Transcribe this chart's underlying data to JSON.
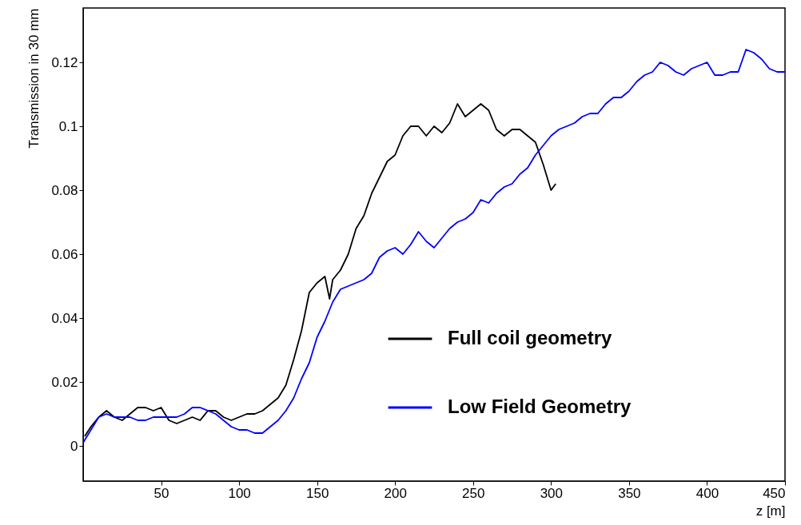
{
  "chart_data": {
    "type": "line",
    "xlabel": "z [m]",
    "ylabel": "Transmission in 30 mm",
    "xlim": [
      0,
      450
    ],
    "xticks": [
      50,
      100,
      150,
      200,
      250,
      300,
      350,
      400,
      450
    ],
    "ylim": [
      -0.011,
      0.137
    ],
    "yticks": [
      0,
      0.02,
      0.04,
      0.06,
      0.08,
      0.1,
      0.12
    ],
    "grid": false,
    "legend": "bottom right",
    "marker": "none",
    "line_style": "solid",
    "series": [
      {
        "name": "Full coil geometry",
        "color": "#000000",
        "x": [
          1,
          5,
          10,
          15,
          20,
          25,
          30,
          35,
          40,
          45,
          50,
          55,
          60,
          65,
          70,
          75,
          80,
          85,
          90,
          95,
          100,
          105,
          110,
          115,
          120,
          125,
          130,
          135,
          140,
          145,
          150,
          155,
          158,
          160,
          165,
          170,
          175,
          180,
          185,
          190,
          195,
          200,
          205,
          210,
          215,
          220,
          225,
          230,
          235,
          240,
          245,
          250,
          255,
          260,
          265,
          270,
          275,
          280,
          285,
          290,
          295,
          300,
          303
        ],
        "values": [
          0.003,
          0.006,
          0.009,
          0.011,
          0.009,
          0.008,
          0.01,
          0.012,
          0.012,
          0.011,
          0.012,
          0.008,
          0.007,
          0.008,
          0.009,
          0.008,
          0.011,
          0.011,
          0.009,
          0.008,
          0.009,
          0.01,
          0.01,
          0.011,
          0.013,
          0.015,
          0.019,
          0.027,
          0.036,
          0.048,
          0.051,
          0.053,
          0.046,
          0.052,
          0.055,
          0.06,
          0.068,
          0.072,
          0.079,
          0.084,
          0.089,
          0.091,
          0.097,
          0.1,
          0.1,
          0.097,
          0.1,
          0.098,
          0.101,
          0.107,
          0.103,
          0.105,
          0.107,
          0.105,
          0.099,
          0.097,
          0.099,
          0.099,
          0.097,
          0.095,
          0.088,
          0.08,
          0.082
        ]
      },
      {
        "name": "Low Field Geometry",
        "color": "#0000ff",
        "x": [
          0,
          5,
          10,
          15,
          20,
          25,
          30,
          35,
          40,
          45,
          50,
          55,
          60,
          65,
          70,
          75,
          80,
          85,
          90,
          95,
          100,
          105,
          110,
          115,
          120,
          125,
          130,
          135,
          140,
          145,
          150,
          155,
          160,
          165,
          170,
          175,
          180,
          185,
          190,
          195,
          200,
          205,
          210,
          215,
          220,
          225,
          230,
          235,
          240,
          245,
          250,
          255,
          260,
          265,
          270,
          275,
          280,
          285,
          290,
          295,
          300,
          305,
          310,
          315,
          320,
          325,
          330,
          335,
          340,
          345,
          350,
          355,
          360,
          365,
          370,
          375,
          380,
          385,
          390,
          395,
          400,
          405,
          410,
          415,
          420,
          425,
          430,
          435,
          440,
          445,
          450
        ],
        "values": [
          0.001,
          0.005,
          0.009,
          0.01,
          0.009,
          0.009,
          0.009,
          0.008,
          0.008,
          0.009,
          0.009,
          0.009,
          0.009,
          0.01,
          0.012,
          0.012,
          0.011,
          0.01,
          0.008,
          0.006,
          0.005,
          0.005,
          0.004,
          0.004,
          0.006,
          0.008,
          0.011,
          0.015,
          0.021,
          0.026,
          0.034,
          0.039,
          0.045,
          0.049,
          0.05,
          0.051,
          0.052,
          0.054,
          0.059,
          0.061,
          0.062,
          0.06,
          0.063,
          0.067,
          0.064,
          0.062,
          0.065,
          0.068,
          0.07,
          0.071,
          0.073,
          0.077,
          0.076,
          0.079,
          0.081,
          0.082,
          0.085,
          0.087,
          0.091,
          0.094,
          0.097,
          0.099,
          0.1,
          0.101,
          0.103,
          0.104,
          0.104,
          0.107,
          0.109,
          0.109,
          0.111,
          0.114,
          0.116,
          0.117,
          0.12,
          0.119,
          0.117,
          0.116,
          0.118,
          0.119,
          0.12,
          0.116,
          0.116,
          0.117,
          0.117,
          0.124,
          0.123,
          0.121,
          0.118,
          0.117,
          0.117
        ]
      }
    ]
  }
}
